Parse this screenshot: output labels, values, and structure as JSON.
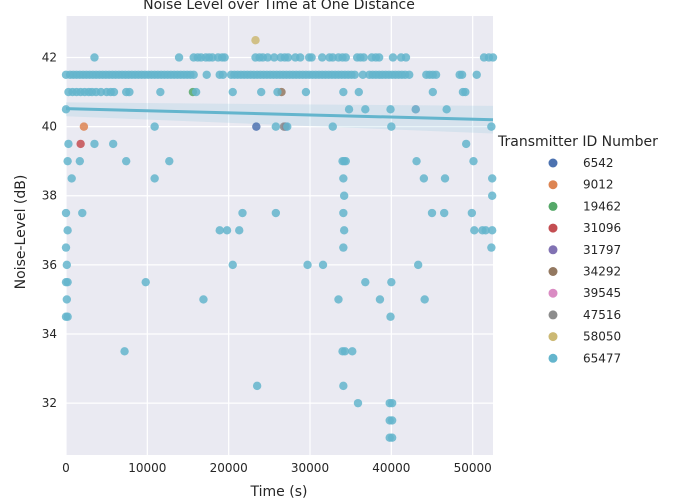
{
  "chart_data": {
    "type": "scatter",
    "title": "Noise Level over Time at One Distance",
    "xlabel": "Time (s)",
    "ylabel": "Noise-Level (dB)",
    "xlim": [
      0,
      52500
    ],
    "ylim": [
      30.5,
      43.2
    ],
    "xticks": [
      0,
      10000,
      20000,
      30000,
      40000,
      50000
    ],
    "yticks": [
      32,
      34,
      36,
      38,
      40,
      42
    ],
    "grid": true,
    "legend": {
      "title": "Transmitter ID Number",
      "placement": "right",
      "entries": [
        {
          "name": "6542",
          "color": "#4c72b0"
        },
        {
          "name": "9012",
          "color": "#dd8452"
        },
        {
          "name": "19462",
          "color": "#55a868"
        },
        {
          "name": "31096",
          "color": "#c44e52"
        },
        {
          "name": "31797",
          "color": "#8172b3"
        },
        {
          "name": "34292",
          "color": "#937860"
        },
        {
          "name": "39545",
          "color": "#da8bc3"
        },
        {
          "name": "47516",
          "color": "#8c8c8c"
        },
        {
          "name": "58050",
          "color": "#ccb974"
        },
        {
          "name": "65477",
          "color": "#64b5cd"
        }
      ]
    },
    "regression": {
      "x": [
        0,
        52500
      ],
      "y": [
        40.52,
        40.2
      ],
      "ci_lower": [
        40.3,
        39.8
      ],
      "ci_upper": [
        40.7,
        40.6
      ],
      "color": "#64b5cd"
    },
    "series": [
      {
        "name": "6542",
        "points": [
          [
            23400,
            40.0
          ]
        ]
      },
      {
        "name": "9012",
        "points": [
          [
            2200,
            40.0
          ]
        ]
      },
      {
        "name": "19462",
        "points": [
          [
            15600,
            41.0
          ]
        ]
      },
      {
        "name": "31096",
        "points": [
          [
            1800,
            39.5
          ]
        ]
      },
      {
        "name": "31797",
        "points": [
          [
            27000,
            40.0
          ]
        ]
      },
      {
        "name": "34292",
        "points": [
          [
            26500,
            41.0
          ]
        ]
      },
      {
        "name": "39545",
        "points": [
          [
            43000,
            40.5
          ]
        ]
      },
      {
        "name": "47516",
        "points": [
          [
            26800,
            40.0
          ]
        ]
      },
      {
        "name": "58050",
        "points": [
          [
            23300,
            42.5
          ]
        ]
      },
      {
        "name": "65477",
        "points": [
          [
            0,
            41.5
          ],
          [
            500,
            41.5
          ],
          [
            900,
            41.5
          ],
          [
            1300,
            41.5
          ],
          [
            1700,
            41.5
          ],
          [
            2100,
            41.5
          ],
          [
            2500,
            41.5
          ],
          [
            2900,
            41.5
          ],
          [
            3300,
            41.5
          ],
          [
            3700,
            41.5
          ],
          [
            4100,
            41.5
          ],
          [
            4500,
            41.5
          ],
          [
            4900,
            41.5
          ],
          [
            5300,
            41.5
          ],
          [
            5700,
            41.5
          ],
          [
            6100,
            41.5
          ],
          [
            6500,
            41.5
          ],
          [
            6900,
            41.5
          ],
          [
            7300,
            41.5
          ],
          [
            7700,
            41.5
          ],
          [
            8100,
            41.5
          ],
          [
            8500,
            41.5
          ],
          [
            8900,
            41.5
          ],
          [
            9300,
            41.5
          ],
          [
            9700,
            41.5
          ],
          [
            10100,
            41.5
          ],
          [
            10500,
            41.5
          ],
          [
            10900,
            41.5
          ],
          [
            11300,
            41.5
          ],
          [
            11700,
            41.5
          ],
          [
            12100,
            41.5
          ],
          [
            12500,
            41.5
          ],
          [
            12900,
            41.5
          ],
          [
            13300,
            41.5
          ],
          [
            13700,
            41.5
          ],
          [
            14100,
            41.5
          ],
          [
            14500,
            41.5
          ],
          [
            14900,
            41.5
          ],
          [
            15300,
            41.5
          ],
          [
            15700,
            41.5
          ],
          [
            17300,
            41.5
          ],
          [
            18900,
            41.5
          ],
          [
            19300,
            41.5
          ],
          [
            20300,
            41.5
          ],
          [
            20700,
            41.5
          ],
          [
            21100,
            41.5
          ],
          [
            21500,
            41.5
          ],
          [
            21900,
            41.5
          ],
          [
            22300,
            41.5
          ],
          [
            22700,
            41.5
          ],
          [
            23100,
            41.5
          ],
          [
            23500,
            41.5
          ],
          [
            23900,
            41.5
          ],
          [
            24300,
            41.5
          ],
          [
            24700,
            41.5
          ],
          [
            25100,
            41.5
          ],
          [
            25500,
            41.5
          ],
          [
            25900,
            41.5
          ],
          [
            26300,
            41.5
          ],
          [
            26700,
            41.5
          ],
          [
            27100,
            41.5
          ],
          [
            27500,
            41.5
          ],
          [
            27900,
            41.5
          ],
          [
            28300,
            41.5
          ],
          [
            28700,
            41.5
          ],
          [
            29100,
            41.5
          ],
          [
            29500,
            41.5
          ],
          [
            29900,
            41.5
          ],
          [
            30300,
            41.5
          ],
          [
            30700,
            41.5
          ],
          [
            31100,
            41.5
          ],
          [
            31500,
            41.5
          ],
          [
            31900,
            41.5
          ],
          [
            32300,
            41.5
          ],
          [
            32700,
            41.5
          ],
          [
            33100,
            41.5
          ],
          [
            33500,
            41.5
          ],
          [
            33900,
            41.5
          ],
          [
            34300,
            41.5
          ],
          [
            34700,
            41.5
          ],
          [
            35100,
            41.5
          ],
          [
            35500,
            41.5
          ],
          [
            36500,
            41.5
          ],
          [
            37300,
            41.5
          ],
          [
            37700,
            41.5
          ],
          [
            38100,
            41.5
          ],
          [
            38500,
            41.5
          ],
          [
            38900,
            41.5
          ],
          [
            39300,
            41.5
          ],
          [
            39700,
            41.5
          ],
          [
            40100,
            41.5
          ],
          [
            40500,
            41.5
          ],
          [
            40900,
            41.5
          ],
          [
            41300,
            41.5
          ],
          [
            41700,
            41.5
          ],
          [
            42200,
            41.5
          ],
          [
            44300,
            41.5
          ],
          [
            44700,
            41.5
          ],
          [
            45100,
            41.5
          ],
          [
            45500,
            41.5
          ],
          [
            48400,
            41.5
          ],
          [
            48700,
            41.5
          ],
          [
            50500,
            41.5
          ],
          [
            3500,
            42.0
          ],
          [
            13900,
            42.0
          ],
          [
            15700,
            42.0
          ],
          [
            16200,
            42.0
          ],
          [
            16600,
            42.0
          ],
          [
            17200,
            42.0
          ],
          [
            17600,
            42.0
          ],
          [
            18000,
            42.0
          ],
          [
            18700,
            42.0
          ],
          [
            19200,
            42.0
          ],
          [
            19500,
            42.0
          ],
          [
            23300,
            42.0
          ],
          [
            23800,
            42.0
          ],
          [
            24200,
            42.0
          ],
          [
            24800,
            42.0
          ],
          [
            25600,
            42.0
          ],
          [
            26400,
            42.0
          ],
          [
            26900,
            42.0
          ],
          [
            27300,
            42.0
          ],
          [
            28200,
            42.0
          ],
          [
            28800,
            42.0
          ],
          [
            29900,
            42.0
          ],
          [
            30200,
            42.0
          ],
          [
            31500,
            42.0
          ],
          [
            32400,
            42.0
          ],
          [
            32800,
            42.0
          ],
          [
            33500,
            42.0
          ],
          [
            34000,
            42.0
          ],
          [
            34400,
            42.0
          ],
          [
            35800,
            42.0
          ],
          [
            36200,
            42.0
          ],
          [
            36600,
            42.0
          ],
          [
            37600,
            42.0
          ],
          [
            38100,
            42.0
          ],
          [
            38500,
            42.0
          ],
          [
            40200,
            42.0
          ],
          [
            41200,
            42.0
          ],
          [
            41800,
            42.0
          ],
          [
            51400,
            42.0
          ],
          [
            52000,
            42.0
          ],
          [
            52500,
            42.0
          ],
          [
            300,
            41.0
          ],
          [
            800,
            41.0
          ],
          [
            1300,
            41.0
          ],
          [
            1800,
            41.0
          ],
          [
            2300,
            41.0
          ],
          [
            2800,
            41.0
          ],
          [
            3200,
            41.0
          ],
          [
            3700,
            41.0
          ],
          [
            4300,
            41.0
          ],
          [
            5000,
            41.0
          ],
          [
            5500,
            41.0
          ],
          [
            5900,
            41.0
          ],
          [
            7400,
            41.0
          ],
          [
            7800,
            41.0
          ],
          [
            11600,
            41.0
          ],
          [
            16000,
            41.0
          ],
          [
            20500,
            41.0
          ],
          [
            24000,
            41.0
          ],
          [
            26000,
            41.0
          ],
          [
            29500,
            41.0
          ],
          [
            34100,
            41.0
          ],
          [
            36000,
            41.0
          ],
          [
            45100,
            41.0
          ],
          [
            48800,
            41.0
          ],
          [
            49100,
            41.0
          ],
          [
            0,
            40.5
          ],
          [
            34800,
            40.5
          ],
          [
            36800,
            40.5
          ],
          [
            39900,
            40.5
          ],
          [
            43000,
            40.5
          ],
          [
            46800,
            40.5
          ],
          [
            10900,
            40.0
          ],
          [
            25800,
            40.0
          ],
          [
            27200,
            40.0
          ],
          [
            32800,
            40.0
          ],
          [
            40000,
            40.0
          ],
          [
            52300,
            40.0
          ],
          [
            300,
            39.5
          ],
          [
            3500,
            39.5
          ],
          [
            5800,
            39.5
          ],
          [
            49200,
            39.5
          ],
          [
            200,
            39.0
          ],
          [
            1700,
            39.0
          ],
          [
            7400,
            39.0
          ],
          [
            12700,
            39.0
          ],
          [
            34000,
            39.0
          ],
          [
            34200,
            39.0
          ],
          [
            34400,
            39.0
          ],
          [
            43100,
            39.0
          ],
          [
            50100,
            39.0
          ],
          [
            700,
            38.5
          ],
          [
            10900,
            38.5
          ],
          [
            34100,
            38.5
          ],
          [
            44000,
            38.5
          ],
          [
            46600,
            38.5
          ],
          [
            52400,
            38.5
          ],
          [
            34200,
            38.0
          ],
          [
            52400,
            38.0
          ],
          [
            0,
            37.5
          ],
          [
            2000,
            37.5
          ],
          [
            21700,
            37.5
          ],
          [
            25800,
            37.5
          ],
          [
            34100,
            37.5
          ],
          [
            45000,
            37.5
          ],
          [
            46500,
            37.5
          ],
          [
            49900,
            37.5
          ],
          [
            200,
            37.0
          ],
          [
            18900,
            37.0
          ],
          [
            19800,
            37.0
          ],
          [
            21300,
            37.0
          ],
          [
            34200,
            37.0
          ],
          [
            50200,
            37.0
          ],
          [
            51200,
            37.0
          ],
          [
            51600,
            37.0
          ],
          [
            52400,
            37.0
          ],
          [
            0,
            36.5
          ],
          [
            34100,
            36.5
          ],
          [
            52300,
            36.5
          ],
          [
            100,
            36.0
          ],
          [
            20500,
            36.0
          ],
          [
            29700,
            36.0
          ],
          [
            31600,
            36.0
          ],
          [
            43300,
            36.0
          ],
          [
            0,
            35.5
          ],
          [
            200,
            35.5
          ],
          [
            9800,
            35.5
          ],
          [
            36800,
            35.5
          ],
          [
            40000,
            35.5
          ],
          [
            100,
            35.0
          ],
          [
            16900,
            35.0
          ],
          [
            33500,
            35.0
          ],
          [
            38600,
            35.0
          ],
          [
            44100,
            35.0
          ],
          [
            0,
            34.5
          ],
          [
            200,
            34.5
          ],
          [
            39900,
            34.5
          ],
          [
            7200,
            33.5
          ],
          [
            34000,
            33.5
          ],
          [
            34300,
            33.5
          ],
          [
            35200,
            33.5
          ],
          [
            23500,
            32.5
          ],
          [
            34100,
            32.5
          ],
          [
            35900,
            32.0
          ],
          [
            39800,
            32.0
          ],
          [
            40100,
            32.0
          ],
          [
            39800,
            31.5
          ],
          [
            40100,
            31.5
          ],
          [
            39800,
            31.0
          ],
          [
            40100,
            31.0
          ]
        ]
      }
    ]
  }
}
